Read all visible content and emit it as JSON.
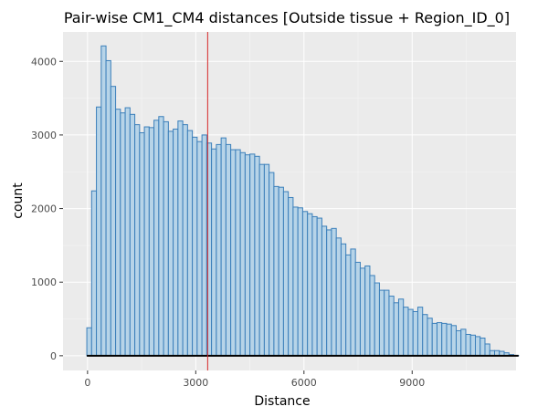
{
  "chart_data": {
    "type": "bar",
    "title": "Pair-wise CM1_CM4 distances [Outside tissue + Region_ID_0]",
    "xlabel": "Distance",
    "ylabel": "count",
    "xlim": [
      -680,
      11880
    ],
    "ylim": [
      -200,
      4400
    ],
    "xticks": [
      0,
      3000,
      6000,
      9000
    ],
    "xtick_labels": [
      "0",
      "3000",
      "6000",
      "9000"
    ],
    "yticks": [
      0,
      1000,
      2000,
      3000,
      4000
    ],
    "ytick_labels": [
      "0",
      "1000",
      "2000",
      "3000",
      "4000"
    ],
    "grid": true,
    "bin_start": -20,
    "bin_width": 133,
    "values": [
      380,
      2240,
      3380,
      4210,
      4010,
      3660,
      3350,
      3300,
      3370,
      3280,
      3140,
      3030,
      3110,
      3100,
      3200,
      3250,
      3180,
      3050,
      3080,
      3190,
      3140,
      3060,
      2970,
      2910,
      3000,
      2890,
      2810,
      2870,
      2960,
      2870,
      2800,
      2800,
      2760,
      2730,
      2740,
      2710,
      2600,
      2600,
      2490,
      2300,
      2290,
      2230,
      2150,
      2020,
      2010,
      1960,
      1930,
      1890,
      1870,
      1760,
      1710,
      1730,
      1600,
      1520,
      1370,
      1450,
      1270,
      1190,
      1220,
      1090,
      990,
      890,
      890,
      810,
      720,
      770,
      660,
      630,
      600,
      660,
      560,
      510,
      440,
      450,
      440,
      430,
      410,
      340,
      360,
      290,
      280,
      260,
      240,
      160,
      70,
      70,
      60,
      40,
      15,
      5
    ],
    "bar_fill": "#b7d4e8",
    "bar_edge": "#3b7fba",
    "vline": {
      "x": 3330,
      "color": "#d62728"
    },
    "baseline_color": "#000000"
  }
}
